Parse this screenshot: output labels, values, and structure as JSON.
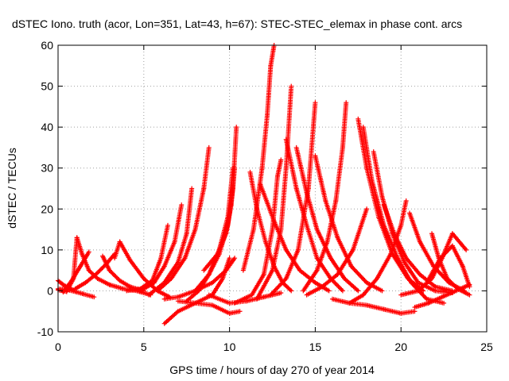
{
  "chart_data": {
    "type": "scatter",
    "title": "dSTEC Iono. truth (acor, Lon=351, Lat=43, h=67): STEC-STEC_elemax in phase cont. arcs",
    "xlabel": "GPS time / hours of day 270 of year 2014",
    "ylabel": "dSTEC  / TECUs",
    "xlim": [
      0,
      25
    ],
    "ylim": [
      -10,
      60
    ],
    "xticks": [
      "0",
      "5",
      "10",
      "15",
      "20",
      "25"
    ],
    "yticks": [
      "-10",
      "0",
      "10",
      "20",
      "30",
      "40",
      "50",
      "60"
    ],
    "grid": true,
    "marker": "plus",
    "color": "#ff0000",
    "series": [
      {
        "x": [
          0.0,
          0.5,
          1.0,
          1.5,
          2.1
        ],
        "y": [
          0.5,
          0.3,
          -0.2,
          -0.8,
          -1.5
        ]
      },
      {
        "x": [
          0.0,
          0.3,
          0.6,
          0.9
        ],
        "y": [
          2.5,
          1.5,
          0.8,
          0.2
        ]
      },
      {
        "x": [
          0.0,
          0.5,
          0.9,
          1.1,
          1.4,
          1.8,
          2.3,
          3.0,
          3.8,
          4.6,
          5.4
        ],
        "y": [
          0.2,
          -0.2,
          3.0,
          13.0,
          9.0,
          5.0,
          3.0,
          1.5,
          0.5,
          0.0,
          -1.0
        ]
      },
      {
        "x": [
          0.3,
          0.8,
          1.3,
          1.8
        ],
        "y": [
          -0.3,
          2.5,
          6.0,
          9.5
        ]
      },
      {
        "x": [
          1.0,
          1.6,
          2.2,
          2.8,
          3.3
        ],
        "y": [
          0.5,
          2.0,
          4.0,
          6.5,
          9.0
        ]
      },
      {
        "x": [
          2.6,
          3.0,
          3.6,
          4.2,
          5.0
        ],
        "y": [
          8.5,
          5.0,
          2.5,
          1.0,
          0.0
        ]
      },
      {
        "x": [
          3.3,
          3.6,
          4.2,
          5.0,
          5.8,
          6.5
        ],
        "y": [
          8.0,
          12.0,
          7.5,
          3.0,
          0.0,
          -1.5
        ]
      },
      {
        "x": [
          4.0,
          4.8,
          5.5,
          6.0,
          6.4
        ],
        "y": [
          0.0,
          0.5,
          2.5,
          8.0,
          16.0
        ]
      },
      {
        "x": [
          4.8,
          5.6,
          6.2,
          6.8,
          7.2
        ],
        "y": [
          0.0,
          2.0,
          6.0,
          12.0,
          21.0
        ]
      },
      {
        "x": [
          5.3,
          6.2,
          7.0,
          7.5,
          7.8
        ],
        "y": [
          -1.0,
          2.0,
          7.0,
          14.0,
          25.0
        ]
      },
      {
        "x": [
          5.8,
          6.6,
          7.4,
          8.0,
          8.5,
          8.8
        ],
        "y": [
          0.0,
          3.0,
          8.0,
          15.0,
          25.0,
          35.0
        ]
      },
      {
        "x": [
          6.2,
          7.0,
          8.0,
          9.0,
          9.8,
          10.3
        ],
        "y": [
          -2.0,
          -1.5,
          0.0,
          2.0,
          5.0,
          8.0
        ]
      },
      {
        "x": [
          6.2,
          7.0,
          8.0,
          9.0,
          9.6,
          10.0
        ],
        "y": [
          -8.0,
          -5.0,
          -3.0,
          -1.0,
          3.0,
          8.0
        ]
      },
      {
        "x": [
          7.0,
          8.0,
          9.0,
          10.0,
          10.6
        ],
        "y": [
          -2.5,
          -3.0,
          -3.5,
          -5.5,
          -5.0
        ]
      },
      {
        "x": [
          7.5,
          8.2,
          8.8,
          9.4,
          9.9,
          10.2
        ],
        "y": [
          -2.5,
          0.0,
          4.0,
          10.0,
          18.0,
          30.0
        ]
      },
      {
        "x": [
          8.0,
          8.8,
          9.4,
          9.9,
          10.2,
          10.4
        ],
        "y": [
          0.0,
          4.0,
          9.0,
          16.0,
          25.0,
          40.0
        ]
      },
      {
        "x": [
          8.5,
          9.3,
          9.8,
          10.1,
          10.3
        ],
        "y": [
          5.0,
          9.0,
          14.0,
          21.0,
          30.0
        ]
      },
      {
        "x": [
          8.8,
          10.0,
          11.0,
          12.0,
          13.0
        ],
        "y": [
          -1.0,
          -3.0,
          -2.5,
          -1.5,
          -0.5
        ]
      },
      {
        "x": [
          10.3,
          11.3,
          12.0,
          12.5,
          12.8,
          13.0
        ],
        "y": [
          -3.0,
          -1.0,
          4.0,
          15.0,
          28.0,
          32.0
        ]
      },
      {
        "x": [
          11.2,
          11.6,
          12.1,
          12.6,
          13.1,
          13.6
        ],
        "y": [
          29.0,
          20.0,
          12.0,
          6.0,
          2.0,
          0.0
        ]
      },
      {
        "x": [
          10.8,
          11.4,
          11.9,
          12.2,
          12.4,
          12.6
        ],
        "y": [
          5.0,
          15.0,
          30.0,
          43.0,
          55.0,
          60.0
        ]
      },
      {
        "x": [
          11.6,
          12.5,
          13.0,
          13.3,
          13.6
        ],
        "y": [
          -2.0,
          5.0,
          15.0,
          30.0,
          50.0
        ]
      },
      {
        "x": [
          11.8,
          12.6,
          13.3,
          14.1,
          15.0,
          15.8
        ],
        "y": [
          26.0,
          17.0,
          10.0,
          5.0,
          2.0,
          0.0
        ]
      },
      {
        "x": [
          13.3,
          13.9,
          14.5,
          15.1,
          15.9,
          16.6
        ],
        "y": [
          37.0,
          25.0,
          16.0,
          8.0,
          3.0,
          0.0
        ]
      },
      {
        "x": [
          12.4,
          13.3,
          14.0,
          14.6,
          15.0
        ],
        "y": [
          -1.0,
          3.0,
          10.0,
          25.0,
          46.0
        ]
      },
      {
        "x": [
          13.9,
          14.5,
          15.1,
          15.9,
          16.7,
          17.5
        ],
        "y": [
          35.0,
          24.0,
          15.0,
          8.0,
          3.0,
          0.0
        ]
      },
      {
        "x": [
          14.3,
          15.1,
          15.7,
          16.2,
          16.6,
          16.8
        ],
        "y": [
          0.0,
          5.0,
          12.0,
          22.0,
          35.0,
          46.0
        ]
      },
      {
        "x": [
          15.0,
          15.6,
          16.3,
          17.1,
          18.0,
          18.9
        ],
        "y": [
          33.0,
          22.0,
          13.0,
          6.0,
          2.0,
          0.0
        ]
      },
      {
        "x": [
          14.5,
          15.4,
          16.3,
          17.2,
          18.0
        ],
        "y": [
          -1.0,
          1.0,
          4.0,
          10.0,
          20.0
        ]
      },
      {
        "x": [
          17.5,
          18.0,
          18.7,
          19.5,
          20.4,
          21.3
        ],
        "y": [
          42.0,
          30.0,
          18.0,
          9.0,
          3.0,
          0.0
        ]
      },
      {
        "x": [
          17.8,
          18.3,
          19.0,
          19.8,
          20.6,
          21.5,
          22.5
        ],
        "y": [
          40.0,
          27.0,
          16.0,
          8.0,
          2.0,
          -2.0,
          -3.0
        ]
      },
      {
        "x": [
          18.4,
          18.9,
          19.5,
          20.2,
          21.0,
          22.0,
          23.0
        ],
        "y": [
          34.0,
          23.0,
          14.0,
          7.0,
          2.0,
          0.0,
          -0.5
        ]
      },
      {
        "x": [
          17.0,
          17.8,
          18.6,
          19.4,
          20.0,
          20.3
        ],
        "y": [
          -3.0,
          -1.0,
          3.0,
          9.0,
          16.0,
          22.0
        ]
      },
      {
        "x": [
          16.0,
          17.0,
          18.0,
          19.0,
          20.0,
          20.8
        ],
        "y": [
          -2.0,
          -3.0,
          -3.5,
          -4.5,
          -5.5,
          -5.0
        ]
      },
      {
        "x": [
          19.0,
          19.6,
          20.3,
          21.1,
          22.0,
          23.0
        ],
        "y": [
          21.0,
          14.0,
          8.0,
          4.0,
          1.0,
          0.0
        ]
      },
      {
        "x": [
          20.5,
          21.1,
          21.9,
          22.8,
          23.7
        ],
        "y": [
          19.0,
          12.0,
          6.0,
          2.0,
          0.0
        ]
      },
      {
        "x": [
          20.0,
          21.0,
          21.8,
          22.4,
          23.0,
          23.8
        ],
        "y": [
          -1.0,
          0.0,
          3.0,
          8.0,
          14.0,
          10.0
        ]
      },
      {
        "x": [
          21.5,
          22.3,
          23.0,
          23.6,
          24.0
        ],
        "y": [
          2.0,
          8.0,
          11.0,
          6.0,
          1.0
        ]
      },
      {
        "x": [
          21.8,
          22.2,
          22.7,
          23.3,
          24.0
        ],
        "y": [
          14.0,
          8.0,
          3.0,
          0.5,
          -1.0
        ]
      },
      {
        "x": [
          20.8,
          21.6,
          22.4,
          23.2,
          24.0
        ],
        "y": [
          -4.0,
          -3.0,
          -1.5,
          0.0,
          1.5
        ]
      }
    ]
  }
}
